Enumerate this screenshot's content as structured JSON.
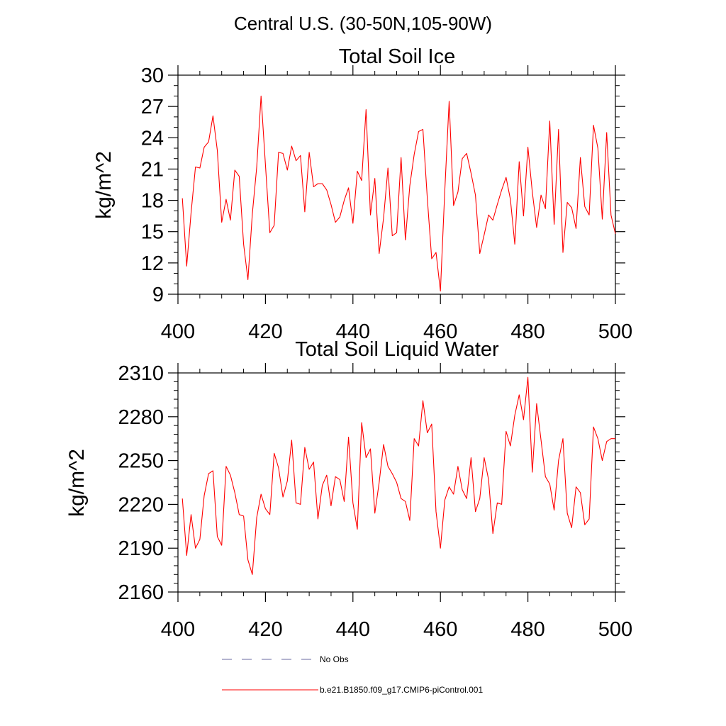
{
  "figure_title": "Central U.S. (30-50N,105-90W)",
  "colors": {
    "model": "#ff0000",
    "obs": "#6a6aa0",
    "axis": "#000000"
  },
  "legend": [
    {
      "label": "No Obs",
      "style": "dashed",
      "color": "#6a6aa0"
    },
    {
      "label": "b.e21.B1850.f09_g17.CMIP6-piControl.001",
      "style": "solid",
      "color": "#ff0000"
    }
  ],
  "chart_data": [
    {
      "type": "line",
      "title": "Total Soil Ice",
      "xlabel": "",
      "ylabel": "kg/m^2",
      "xlim": [
        400,
        500
      ],
      "ylim": [
        9,
        30
      ],
      "xticks": [
        400,
        420,
        440,
        460,
        480,
        500
      ],
      "yticks": [
        9,
        12,
        15,
        18,
        21,
        24,
        27,
        30
      ],
      "yminor_step": 1,
      "xminor_step": 5,
      "grid": false,
      "legend_position": "below",
      "series": [
        {
          "name": "b.e21.B1850.f09_g17.CMIP6-piControl.001",
          "x": [
            401,
            402,
            403,
            404,
            405,
            406,
            407,
            408,
            409,
            410,
            411,
            412,
            413,
            414,
            415,
            416,
            417,
            418,
            419,
            420,
            421,
            422,
            423,
            424,
            425,
            426,
            427,
            428,
            429,
            430,
            431,
            432,
            433,
            434,
            435,
            436,
            437,
            438,
            439,
            440,
            441,
            442,
            443,
            444,
            445,
            446,
            447,
            448,
            449,
            450,
            451,
            452,
            453,
            454,
            455,
            456,
            457,
            458,
            459,
            460,
            461,
            462,
            463,
            464,
            465,
            466,
            467,
            468,
            469,
            470,
            471,
            472,
            473,
            474,
            475,
            476,
            477,
            478,
            479,
            480,
            481,
            482,
            483,
            484,
            485,
            486,
            487,
            488,
            489,
            490,
            491,
            492,
            493,
            494,
            495,
            496,
            497,
            498,
            499,
            500
          ],
          "values": [
            18.2,
            11.7,
            16.8,
            21.2,
            21.1,
            23.1,
            23.6,
            26.1,
            22.8,
            15.9,
            18.1,
            16.1,
            20.9,
            20.3,
            13.8,
            10.4,
            16.7,
            21.2,
            28.0,
            21.4,
            14.9,
            15.6,
            22.6,
            22.5,
            20.9,
            23.2,
            21.8,
            22.3,
            16.9,
            22.6,
            19.3,
            19.6,
            19.6,
            19.0,
            17.6,
            15.9,
            16.4,
            18.0,
            19.2,
            15.8,
            20.8,
            19.9,
            26.7,
            16.6,
            20.1,
            12.9,
            16.3,
            21.1,
            14.6,
            14.9,
            22.1,
            14.2,
            19.4,
            22.4,
            24.6,
            24.8,
            18.2,
            12.4,
            13.0,
            9.3,
            19.0,
            27.5,
            17.5,
            18.8,
            22.0,
            22.5,
            20.6,
            18.5,
            12.9,
            14.7,
            16.6,
            16.1,
            17.6,
            19.0,
            20.2,
            18.1,
            13.8,
            21.7,
            16.5,
            23.1,
            18.8,
            15.4,
            18.5,
            17.2,
            25.6,
            15.7,
            24.8,
            13.0,
            17.8,
            17.3,
            15.3,
            22.1,
            17.4,
            16.6,
            25.2,
            23.0,
            16.2,
            24.5,
            16.6,
            14.8
          ]
        }
      ]
    },
    {
      "type": "line",
      "title": "Total Soil Liquid Water",
      "xlabel": "",
      "ylabel": "kg/m^2",
      "xlim": [
        400,
        500
      ],
      "ylim": [
        2160,
        2310
      ],
      "xticks": [
        400,
        420,
        440,
        460,
        480,
        500
      ],
      "yticks": [
        2160,
        2190,
        2220,
        2250,
        2280,
        2310
      ],
      "yminor_step": 6,
      "xminor_step": 5,
      "grid": false,
      "legend_position": "below",
      "series": [
        {
          "name": "b.e21.B1850.f09_g17.CMIP6-piControl.001",
          "x": [
            401,
            402,
            403,
            404,
            405,
            406,
            407,
            408,
            409,
            410,
            411,
            412,
            413,
            414,
            415,
            416,
            417,
            418,
            419,
            420,
            421,
            422,
            423,
            424,
            425,
            426,
            427,
            428,
            429,
            430,
            431,
            432,
            433,
            434,
            435,
            436,
            437,
            438,
            439,
            440,
            441,
            442,
            443,
            444,
            445,
            446,
            447,
            448,
            449,
            450,
            451,
            452,
            453,
            454,
            455,
            456,
            457,
            458,
            459,
            460,
            461,
            462,
            463,
            464,
            465,
            466,
            467,
            468,
            469,
            470,
            471,
            472,
            473,
            474,
            475,
            476,
            477,
            478,
            479,
            480,
            481,
            482,
            483,
            484,
            485,
            486,
            487,
            488,
            489,
            490,
            491,
            492,
            493,
            494,
            495,
            496,
            497,
            498,
            499,
            500
          ],
          "values": [
            2224,
            2185,
            2213,
            2190,
            2196,
            2226,
            2241,
            2243,
            2198,
            2192,
            2246,
            2240,
            2228,
            2213,
            2212,
            2182,
            2172,
            2211,
            2227,
            2217,
            2213,
            2255,
            2245,
            2225,
            2236,
            2264,
            2221,
            2220,
            2259,
            2244,
            2249,
            2210,
            2233,
            2240,
            2219,
            2239,
            2237,
            2222,
            2266,
            2221,
            2203,
            2276,
            2252,
            2258,
            2214,
            2235,
            2261,
            2246,
            2241,
            2235,
            2224,
            2222,
            2209,
            2265,
            2260,
            2291,
            2269,
            2275,
            2215,
            2190,
            2223,
            2232,
            2227,
            2246,
            2230,
            2224,
            2252,
            2215,
            2224,
            2252,
            2237,
            2200,
            2221,
            2220,
            2270,
            2260,
            2281,
            2295,
            2278,
            2307,
            2242,
            2289,
            2264,
            2239,
            2234,
            2216,
            2250,
            2265,
            2214,
            2204,
            2232,
            2228,
            2206,
            2210,
            2273,
            2265,
            2250,
            2263,
            2265,
            2265
          ]
        }
      ]
    }
  ]
}
